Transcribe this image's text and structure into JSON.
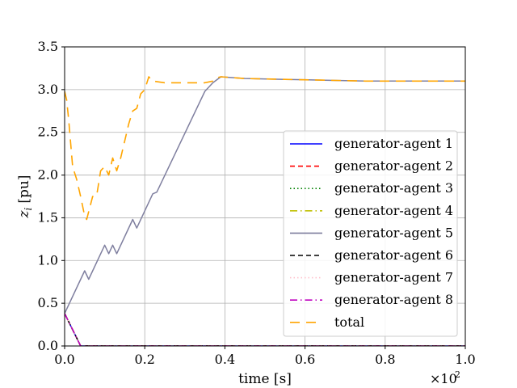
{
  "chart_data": {
    "type": "line",
    "xlabel": "time [s]",
    "ylabel_symbol": "z",
    "ylabel_subscript": "i",
    "ylabel_unit": "[pu]",
    "x_multiplier_base": "×10",
    "x_multiplier_exp": "2",
    "xlim": [
      0,
      1.0
    ],
    "ylim": [
      0,
      3.5
    ],
    "xticks": [
      0.0,
      0.2,
      0.4,
      0.6,
      0.8,
      1.0
    ],
    "xtick_labels": [
      "0.0",
      "0.2",
      "0.4",
      "0.6",
      "0.8",
      "1.0"
    ],
    "yticks": [
      0.0,
      0.5,
      1.0,
      1.5,
      2.0,
      2.5,
      3.0,
      3.5
    ],
    "ytick_labels": [
      "0.0",
      "0.5",
      "1.0",
      "1.5",
      "2.0",
      "2.5",
      "3.0",
      "3.5"
    ],
    "grid": true,
    "legend_position": "lower-right",
    "series": [
      {
        "name": "generator-agent 1",
        "color": "#0000ff",
        "dash": "solid",
        "x": [
          0,
          0.04,
          1.0
        ],
        "y": [
          0.38,
          0.0,
          0.0
        ]
      },
      {
        "name": "generator-agent 2",
        "color": "#ff0000",
        "dash": "dashed",
        "x": [
          0,
          0.04,
          1.0
        ],
        "y": [
          0.38,
          0.0,
          0.0
        ]
      },
      {
        "name": "generator-agent 3",
        "color": "#008000",
        "dash": "dotted",
        "x": [
          0,
          0.04,
          1.0
        ],
        "y": [
          0.38,
          0.0,
          0.0
        ]
      },
      {
        "name": "generator-agent 4",
        "color": "#bfbf00",
        "dash": "dashdot",
        "x": [
          0,
          0.04,
          1.0
        ],
        "y": [
          0.38,
          0.0,
          0.0
        ]
      },
      {
        "name": "generator-agent 5",
        "color": "#7f7f9f",
        "dash": "solid",
        "x": [
          0,
          0.05,
          0.06,
          0.1,
          0.11,
          0.12,
          0.13,
          0.17,
          0.18,
          0.22,
          0.23,
          0.35,
          0.37,
          0.39,
          0.45,
          0.55,
          0.65,
          0.75,
          0.85,
          1.0
        ],
        "y": [
          0.38,
          0.88,
          0.78,
          1.18,
          1.08,
          1.18,
          1.08,
          1.48,
          1.38,
          1.78,
          1.8,
          2.98,
          3.08,
          3.15,
          3.13,
          3.12,
          3.11,
          3.1,
          3.1,
          3.1
        ]
      },
      {
        "name": "generator-agent 6",
        "color": "#000000",
        "dash": "dashed",
        "x": [
          0,
          0.04,
          1.0
        ],
        "y": [
          0.38,
          0.0,
          0.0
        ]
      },
      {
        "name": "generator-agent 7",
        "color": "#ffc0cb",
        "dash": "dotted",
        "x": [
          0,
          0.04,
          1.0
        ],
        "y": [
          0.38,
          0.0,
          0.0
        ]
      },
      {
        "name": "generator-agent 8",
        "color": "#bf00bf",
        "dash": "dashdot",
        "x": [
          0,
          0.04,
          1.0
        ],
        "y": [
          0.38,
          0.0,
          0.0
        ]
      },
      {
        "name": "total",
        "color": "#ffa500",
        "dash": "longdash",
        "x": [
          0,
          0.005,
          0.01,
          0.02,
          0.03,
          0.04,
          0.05,
          0.055,
          0.07,
          0.08,
          0.09,
          0.1,
          0.11,
          0.12,
          0.13,
          0.14,
          0.15,
          0.16,
          0.17,
          0.18,
          0.19,
          0.2,
          0.21,
          0.22,
          0.25,
          0.3,
          0.35,
          0.37,
          0.38,
          0.39,
          0.45,
          0.55,
          0.65,
          0.75,
          0.85,
          1.0
        ],
        "y": [
          2.98,
          2.88,
          2.65,
          2.1,
          1.95,
          1.75,
          1.52,
          1.48,
          1.75,
          1.76,
          2.05,
          2.1,
          2.0,
          2.2,
          2.05,
          2.2,
          2.4,
          2.6,
          2.75,
          2.78,
          2.95,
          3.0,
          3.15,
          3.1,
          3.08,
          3.08,
          3.08,
          3.1,
          3.14,
          3.15,
          3.13,
          3.12,
          3.11,
          3.1,
          3.1,
          3.1
        ]
      }
    ]
  }
}
